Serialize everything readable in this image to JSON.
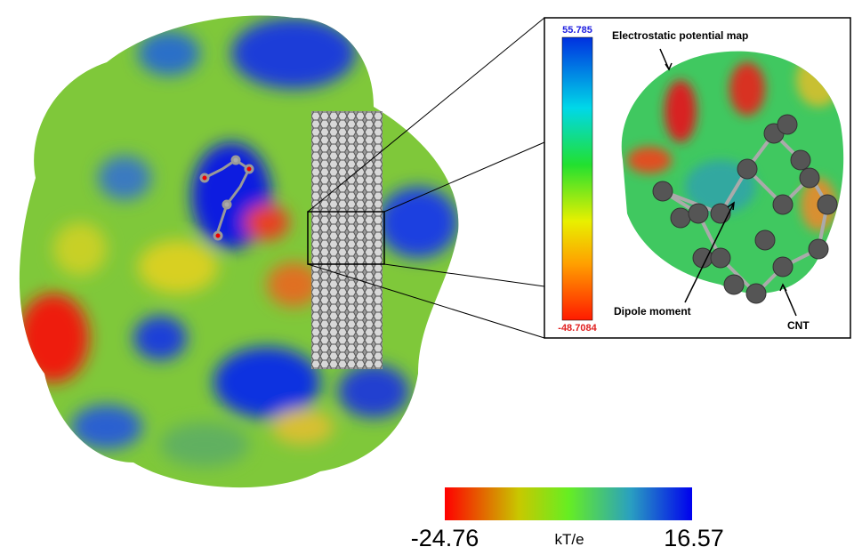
{
  "inset": {
    "scale_max": "55.785",
    "scale_min": "-48.7084",
    "map_label": "Electrostatic potential map",
    "dipole_label": "Dipole moment",
    "cnt_label": "CNT"
  },
  "colorbar": {
    "min": "-24.76",
    "unit": "kT/e",
    "max": "16.57"
  }
}
